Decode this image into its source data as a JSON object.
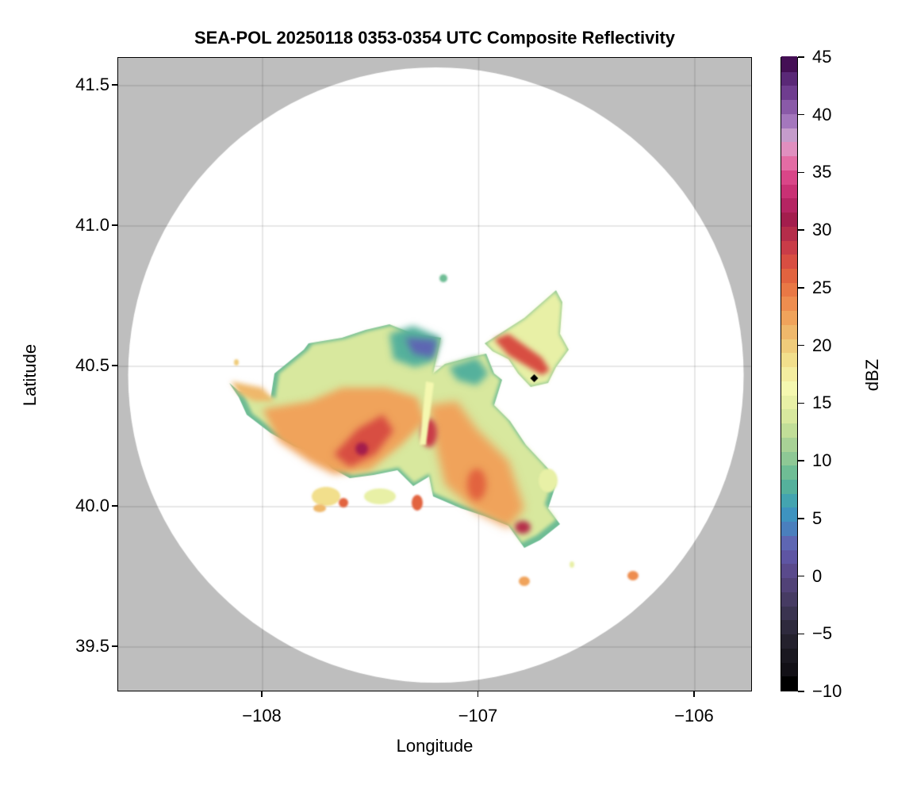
{
  "chart_data": {
    "type": "heatmap",
    "title": "SEA-POL 20250118 0353-0354 UTC Composite Reflectivity",
    "xlabel": "Longitude",
    "ylabel": "Latitude",
    "xlim": [
      -108.668,
      -105.732
    ],
    "ylim": [
      39.339,
      41.599
    ],
    "xticks": [
      -108,
      -107,
      -106
    ],
    "xtick_labels": [
      "−108",
      "−107",
      "−106"
    ],
    "yticks": [
      39.5,
      40.0,
      40.5,
      41.0,
      41.5
    ],
    "ytick_labels": [
      "39.5",
      "40.0",
      "40.5",
      "41.0",
      "41.5"
    ],
    "grid": true,
    "radar_center": {
      "lon": -107.198,
      "lat": 40.469
    },
    "radar_range_deg_lon": 1.424,
    "marker": {
      "lon": -106.743,
      "lat": 40.458,
      "color": "#000000"
    },
    "outside_range_color": "#bebebe",
    "colorbar": {
      "label": "dBZ",
      "range": [
        -10,
        45
      ],
      "position": "right",
      "ticks": [
        -10,
        -5,
        0,
        5,
        10,
        15,
        20,
        25,
        30,
        35,
        40,
        45
      ],
      "tick_labels": [
        "−10",
        "−5",
        "0",
        "5",
        "10",
        "15",
        "20",
        "25",
        "30",
        "35",
        "40",
        "45"
      ],
      "colors": [
        "#000000",
        "#121016",
        "#1a1820",
        "#24212d",
        "#2e2a3d",
        "#3a3350",
        "#463b63",
        "#514277",
        "#5a4a8c",
        "#5e55a3",
        "#5e66b3",
        "#4a7fbd",
        "#3e93bf",
        "#43a4b0",
        "#55b19c",
        "#6fbd95",
        "#8ec895",
        "#a8d296",
        "#c1de98",
        "#d8e89e",
        "#e8f0a6",
        "#f5f8b0",
        "#f4eda0",
        "#f2df8c",
        "#f0cc7b",
        "#efb86b",
        "#f0a35b",
        "#ee8d4f",
        "#e97845",
        "#e2633f",
        "#d84e42",
        "#c93c48",
        "#b52d4a",
        "#a31d4d",
        "#b52462",
        "#c93174",
        "#d94688",
        "#e36ca4",
        "#e08fbf",
        "#c59ccb",
        "#a477bd",
        "#8a5aa8",
        "#6f3d8f",
        "#5a2877",
        "#440f55"
      ]
    }
  }
}
